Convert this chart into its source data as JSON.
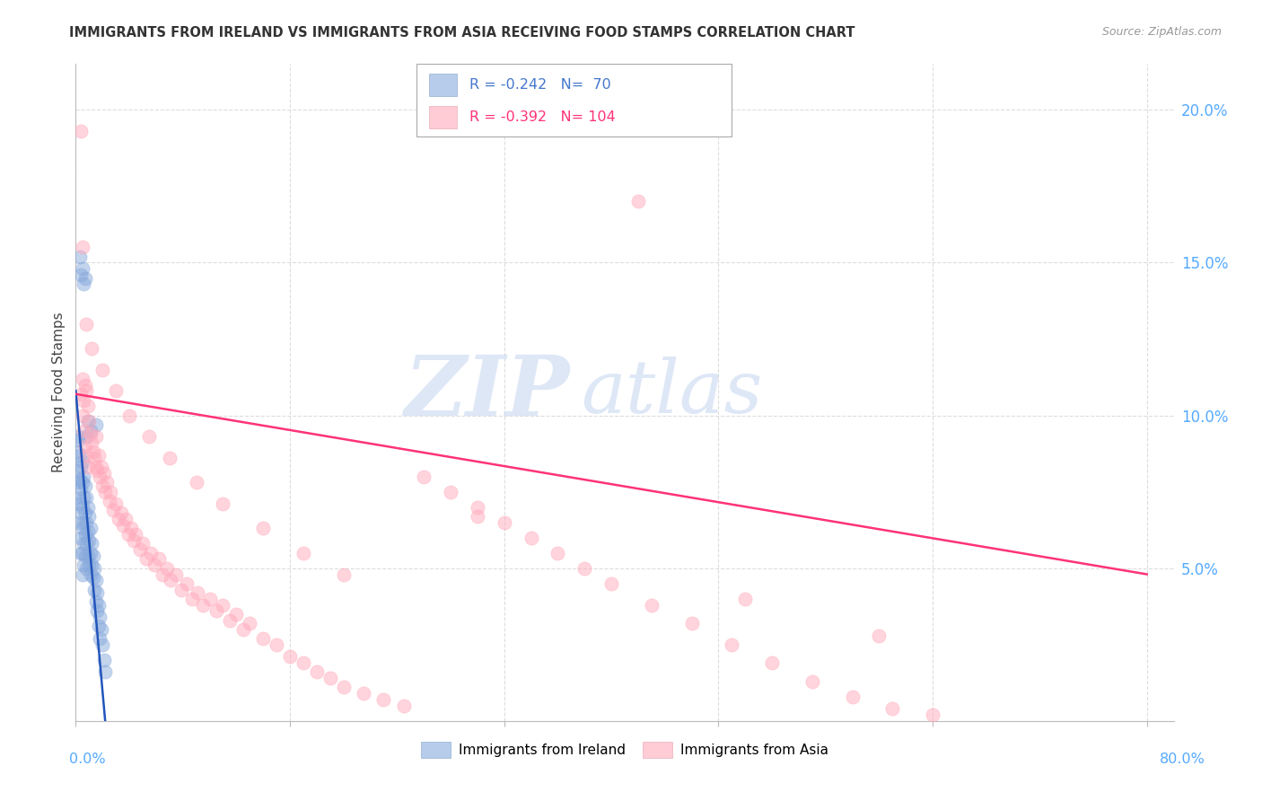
{
  "title": "IMMIGRANTS FROM IRELAND VS IMMIGRANTS FROM ASIA RECEIVING FOOD STAMPS CORRELATION CHART",
  "source": "Source: ZipAtlas.com",
  "ylabel": "Receiving Food Stamps",
  "xlim": [
    0.0,
    0.82
  ],
  "ylim": [
    0.0,
    0.215
  ],
  "yticks": [
    0.05,
    0.1,
    0.15,
    0.2
  ],
  "ytick_labels": [
    "5.0%",
    "10.0%",
    "15.0%",
    "20.0%"
  ],
  "xtick_positions": [
    0.0,
    0.16,
    0.32,
    0.48,
    0.64,
    0.8
  ],
  "ireland_color": "#88aadd",
  "ireland_edge_color": "#6688bb",
  "asia_color": "#ffaabb",
  "asia_edge_color": "#dd8899",
  "ireland_R": -0.242,
  "ireland_N": 70,
  "asia_R": -0.392,
  "asia_N": 104,
  "legend_ireland": "Immigrants from Ireland",
  "legend_asia": "Immigrants from Asia",
  "watermark_text": "ZIP",
  "watermark_text2": "atlas",
  "ireland_line_x": [
    0.0,
    0.022
  ],
  "ireland_line_y": [
    0.108,
    0.0
  ],
  "asia_line_x": [
    0.0,
    0.8
  ],
  "asia_line_y": [
    0.107,
    0.048
  ],
  "ireland_line_color": "#2255bb",
  "asia_line_color": "#ff3377",
  "title_color": "#333333",
  "source_color": "#999999",
  "ytick_color": "#55aaff",
  "xtick_color": "#55aaff",
  "grid_color": "#dddddd",
  "legend_box_color": "#cccccc",
  "ireland_scatter_x": [
    0.001,
    0.001,
    0.002,
    0.002,
    0.002,
    0.003,
    0.003,
    0.003,
    0.003,
    0.004,
    0.004,
    0.004,
    0.004,
    0.004,
    0.005,
    0.005,
    0.005,
    0.005,
    0.005,
    0.005,
    0.006,
    0.006,
    0.006,
    0.006,
    0.006,
    0.007,
    0.007,
    0.007,
    0.007,
    0.008,
    0.008,
    0.008,
    0.008,
    0.009,
    0.009,
    0.009,
    0.01,
    0.01,
    0.01,
    0.011,
    0.011,
    0.011,
    0.012,
    0.012,
    0.013,
    0.013,
    0.014,
    0.014,
    0.015,
    0.015,
    0.016,
    0.016,
    0.017,
    0.017,
    0.018,
    0.018,
    0.019,
    0.02,
    0.021,
    0.022,
    0.003,
    0.005,
    0.007,
    0.009,
    0.011,
    0.004,
    0.006,
    0.008,
    0.015,
    0.002
  ],
  "ireland_scatter_y": [
    0.088,
    0.078,
    0.092,
    0.082,
    0.073,
    0.087,
    0.079,
    0.071,
    0.065,
    0.083,
    0.076,
    0.068,
    0.06,
    0.055,
    0.085,
    0.078,
    0.07,
    0.063,
    0.055,
    0.048,
    0.08,
    0.073,
    0.065,
    0.058,
    0.051,
    0.077,
    0.068,
    0.061,
    0.054,
    0.073,
    0.065,
    0.058,
    0.05,
    0.07,
    0.062,
    0.054,
    0.067,
    0.059,
    0.051,
    0.063,
    0.055,
    0.048,
    0.058,
    0.051,
    0.054,
    0.047,
    0.05,
    0.043,
    0.046,
    0.039,
    0.042,
    0.036,
    0.038,
    0.031,
    0.034,
    0.027,
    0.03,
    0.025,
    0.02,
    0.016,
    0.152,
    0.148,
    0.145,
    0.098,
    0.095,
    0.146,
    0.143,
    0.093,
    0.097,
    0.093
  ],
  "asia_scatter_x": [
    0.004,
    0.005,
    0.005,
    0.006,
    0.006,
    0.007,
    0.007,
    0.008,
    0.008,
    0.009,
    0.009,
    0.01,
    0.011,
    0.012,
    0.013,
    0.014,
    0.015,
    0.015,
    0.016,
    0.017,
    0.018,
    0.019,
    0.02,
    0.021,
    0.022,
    0.023,
    0.025,
    0.026,
    0.028,
    0.03,
    0.032,
    0.034,
    0.035,
    0.037,
    0.039,
    0.041,
    0.043,
    0.045,
    0.048,
    0.05,
    0.053,
    0.056,
    0.059,
    0.062,
    0.065,
    0.068,
    0.071,
    0.075,
    0.079,
    0.083,
    0.087,
    0.091,
    0.095,
    0.1,
    0.105,
    0.11,
    0.115,
    0.12,
    0.125,
    0.13,
    0.14,
    0.15,
    0.16,
    0.17,
    0.18,
    0.19,
    0.2,
    0.215,
    0.23,
    0.245,
    0.26,
    0.28,
    0.3,
    0.32,
    0.34,
    0.36,
    0.38,
    0.4,
    0.43,
    0.46,
    0.49,
    0.52,
    0.55,
    0.58,
    0.61,
    0.64,
    0.008,
    0.012,
    0.02,
    0.03,
    0.04,
    0.055,
    0.07,
    0.09,
    0.11,
    0.14,
    0.17,
    0.2,
    0.004,
    0.3,
    0.42,
    0.5,
    0.6,
    0.005
  ],
  "asia_scatter_y": [
    0.107,
    0.1,
    0.112,
    0.105,
    0.095,
    0.11,
    0.09,
    0.108,
    0.087,
    0.103,
    0.083,
    0.098,
    0.094,
    0.091,
    0.088,
    0.086,
    0.093,
    0.083,
    0.082,
    0.087,
    0.08,
    0.083,
    0.077,
    0.081,
    0.075,
    0.078,
    0.072,
    0.075,
    0.069,
    0.071,
    0.066,
    0.068,
    0.064,
    0.066,
    0.061,
    0.063,
    0.059,
    0.061,
    0.056,
    0.058,
    0.053,
    0.055,
    0.051,
    0.053,
    0.048,
    0.05,
    0.046,
    0.048,
    0.043,
    0.045,
    0.04,
    0.042,
    0.038,
    0.04,
    0.036,
    0.038,
    0.033,
    0.035,
    0.03,
    0.032,
    0.027,
    0.025,
    0.021,
    0.019,
    0.016,
    0.014,
    0.011,
    0.009,
    0.007,
    0.005,
    0.08,
    0.075,
    0.07,
    0.065,
    0.06,
    0.055,
    0.05,
    0.045,
    0.038,
    0.032,
    0.025,
    0.019,
    0.013,
    0.008,
    0.004,
    0.002,
    0.13,
    0.122,
    0.115,
    0.108,
    0.1,
    0.093,
    0.086,
    0.078,
    0.071,
    0.063,
    0.055,
    0.048,
    0.193,
    0.067,
    0.17,
    0.04,
    0.028,
    0.155
  ]
}
